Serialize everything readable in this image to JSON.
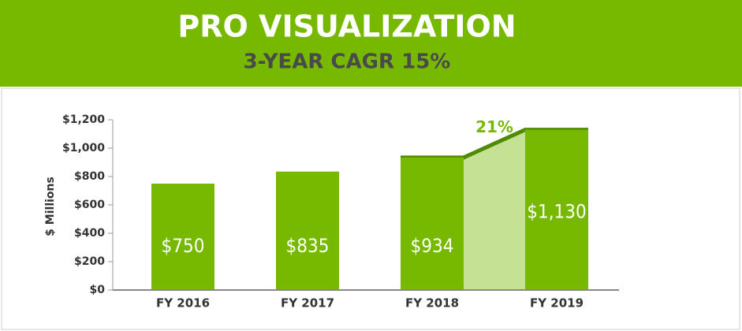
{
  "chart_data": {
    "type": "bar",
    "title": "PRO VISUALIZATION",
    "subtitle": "3-YEAR CAGR 15%",
    "y_label": "$ Millions",
    "categories": [
      "FY 2016",
      "FY 2017",
      "FY 2018",
      "FY 2019"
    ],
    "values": [
      750,
      835,
      934,
      1130
    ],
    "value_labels": [
      "$750",
      "$835",
      "$934",
      "$1,130"
    ],
    "color": "#76b900",
    "growth_label": "21%",
    "ylim": [
      0,
      1200
    ],
    "yticks": [
      {
        "value": 0,
        "label": "$0"
      },
      {
        "value": 200,
        "label": "$200"
      },
      {
        "value": 400,
        "label": "$400"
      },
      {
        "value": 600,
        "label": "$600"
      },
      {
        "value": 800,
        "label": "$800"
      },
      {
        "value": 1000,
        "label": "$1,000"
      },
      {
        "value": 1200,
        "label": "$1,200"
      }
    ],
    "grid": false
  }
}
